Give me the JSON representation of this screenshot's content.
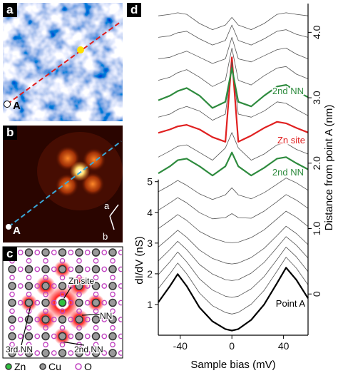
{
  "panels": {
    "a": {
      "letter": "a",
      "point_label": "A"
    },
    "b": {
      "letter": "b",
      "point_label": "A",
      "axis_a": "a",
      "axis_b": "b"
    },
    "c": {
      "letter": "c",
      "labels": [
        "Zn site",
        "NN",
        "3rd NN",
        "2nd NN"
      ],
      "legend": [
        "Zn",
        "Cu",
        "O"
      ]
    },
    "d": {
      "letter": "d"
    }
  },
  "chart_data": {
    "type": "line",
    "x_label": "Sample bias (mV)",
    "y_label": "dI/dV (nS)",
    "y2_label": "Distance from point A (nm)",
    "x": [
      -57,
      -48,
      -42,
      -35,
      -25,
      -15,
      -5,
      0,
      5,
      15,
      25,
      35,
      42,
      50,
      59
    ],
    "xlim": [
      -57,
      59
    ],
    "xticks": [
      -40,
      0,
      40
    ],
    "ylim": [
      0,
      10.8
    ],
    "yticks": [
      1,
      2,
      3,
      4,
      5
    ],
    "y2lim": [
      -0.63,
      4.44
    ],
    "y2ticks": [
      0,
      {
        "value": 1,
        "label": "1.0"
      },
      {
        "value": 2,
        "label": "2.0"
      },
      {
        "value": 3,
        "label": "3.0"
      },
      {
        "value": 4,
        "label": "4.0"
      }
    ],
    "series": [
      {
        "color": "#000000",
        "width": 2.2,
        "values": [
          1.07,
          1.6,
          1.99,
          1.6,
          0.9,
          0.45,
          0.2,
          0.15,
          0.2,
          0.5,
          1.0,
          1.7,
          2.2,
          1.8,
          1.2
        ]
      },
      {
        "color": "#555555",
        "width": 0.8,
        "values": [
          1.52,
          2.0,
          2.35,
          2.0,
          1.37,
          0.96,
          0.74,
          0.69,
          0.74,
          1.01,
          1.46,
          2.09,
          2.54,
          2.18,
          1.64
        ]
      },
      {
        "color": "#555555",
        "width": 0.8,
        "values": [
          1.97,
          2.39,
          2.71,
          2.39,
          1.83,
          1.47,
          1.27,
          1.23,
          1.27,
          1.51,
          1.91,
          2.47,
          2.87,
          2.55,
          2.07
        ]
      },
      {
        "color": "#555555",
        "width": 0.8,
        "values": [
          2.42,
          2.79,
          3.06,
          2.79,
          2.3,
          1.99,
          1.81,
          1.78,
          1.81,
          2.02,
          2.37,
          2.86,
          3.21,
          2.93,
          2.51
        ]
      },
      {
        "color": "#555555",
        "width": 0.8,
        "values": [
          2.87,
          3.19,
          3.42,
          3.19,
          2.77,
          2.5,
          2.35,
          2.32,
          2.35,
          2.53,
          2.83,
          3.25,
          3.55,
          3.31,
          2.95
        ]
      },
      {
        "color": "#555555",
        "width": 0.8,
        "values": [
          3.47,
          3.74,
          3.93,
          3.74,
          3.38,
          3.16,
          3.03,
          3.01,
          3.03,
          3.18,
          3.43,
          3.79,
          4.04,
          3.84,
          3.54
        ]
      },
      {
        "color": "#555555",
        "width": 0.8,
        "values": [
          4.07,
          4.31,
          4.48,
          4.31,
          3.99,
          3.79,
          3.83,
          3.96,
          3.83,
          3.81,
          4.04,
          4.35,
          4.58,
          4.4,
          4.13
        ]
      },
      {
        "color": "#555555",
        "width": 0.8,
        "values": [
          4.67,
          4.88,
          5.04,
          4.88,
          4.6,
          4.42,
          4.57,
          4.8,
          4.57,
          4.44,
          4.64,
          4.92,
          5.12,
          4.96,
          4.72
        ]
      },
      {
        "color": "#2e8b3e",
        "width": 2.2,
        "values": [
          5.27,
          5.5,
          5.7,
          5.75,
          5.5,
          5.2,
          5.5,
          5.95,
          5.5,
          5.2,
          5.45,
          5.75,
          5.8,
          5.6,
          5.4
        ]
      },
      {
        "color": "#555555",
        "width": 0.8,
        "values": [
          5.8,
          6.0,
          6.15,
          6.2,
          5.95,
          5.7,
          6.1,
          6.6,
          6.1,
          5.7,
          5.9,
          6.2,
          6.25,
          6.05,
          5.9
        ]
      },
      {
        "color": "#e02020",
        "width": 2.2,
        "values": [
          6.59,
          6.7,
          6.8,
          6.85,
          6.7,
          6.45,
          6.3,
          9.05,
          6.3,
          6.5,
          6.75,
          6.95,
          6.9,
          6.75,
          6.6
        ]
      },
      {
        "color": "#555555",
        "width": 0.8,
        "values": [
          7.1,
          7.2,
          7.35,
          7.45,
          7.3,
          7.0,
          7.2,
          8.9,
          7.2,
          7.1,
          7.3,
          7.6,
          7.55,
          7.35,
          7.15
        ]
      },
      {
        "color": "#2e8b3e",
        "width": 2.2,
        "values": [
          7.65,
          7.8,
          7.95,
          8.05,
          7.8,
          7.4,
          7.6,
          8.7,
          7.6,
          7.45,
          7.8,
          8.1,
          8.15,
          7.95,
          7.75
        ]
      },
      {
        "color": "#555555",
        "width": 0.8,
        "values": [
          8.3,
          8.4,
          8.55,
          8.65,
          8.4,
          8.1,
          8.3,
          9.35,
          8.3,
          8.15,
          8.45,
          8.7,
          8.75,
          8.5,
          8.35
        ]
      },
      {
        "color": "#555555",
        "width": 0.8,
        "values": [
          9.0,
          9.05,
          9.15,
          9.25,
          9.05,
          8.85,
          9.0,
          9.7,
          9.0,
          8.9,
          9.1,
          9.3,
          9.35,
          9.15,
          9.0
        ]
      },
      {
        "color": "#555555",
        "width": 0.8,
        "values": [
          9.7,
          9.75,
          9.85,
          9.9,
          9.65,
          9.45,
          9.6,
          10.1,
          9.6,
          9.45,
          9.65,
          9.9,
          9.95,
          9.8,
          9.7
        ]
      },
      {
        "color": "#555555",
        "width": 0.8,
        "values": [
          10.4,
          10.45,
          10.5,
          10.45,
          10.15,
          9.95,
          10.1,
          10.35,
          10.1,
          9.95,
          10.15,
          10.45,
          10.5,
          10.45,
          10.4
        ]
      }
    ],
    "annotations": [
      {
        "text": "2nd NN",
        "color": "#2e8b3e"
      },
      {
        "text": "Zn site",
        "color": "#e02020"
      },
      {
        "text": "2nd NN",
        "color": "#2e8b3e"
      },
      {
        "text": "Point A",
        "color": "#000000"
      }
    ]
  }
}
